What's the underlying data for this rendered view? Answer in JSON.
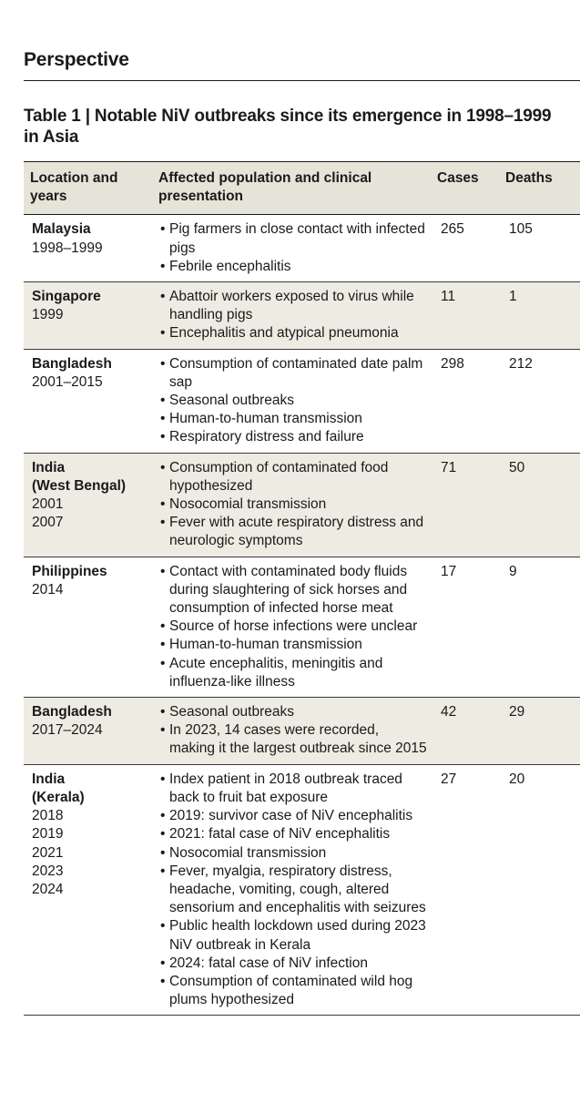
{
  "section_label": "Perspective",
  "table_title": "Table 1 | Notable NiV outbreaks since its emergence in 1998–1999 in Asia",
  "headers": {
    "location": "Location and years",
    "population": "Affected population and clinical presentation",
    "cases": "Cases",
    "deaths": "Deaths"
  },
  "rows": [
    {
      "location": "Malaysia",
      "years": [
        "1998–1999"
      ],
      "points": [
        "Pig farmers in close contact with infected pigs",
        "Febrile encephalitis"
      ],
      "cases": "265",
      "deaths": "105"
    },
    {
      "location": "Singapore",
      "years": [
        "1999"
      ],
      "points": [
        "Abattoir workers exposed to virus while handling pigs",
        "Encephalitis and atypical pneumonia"
      ],
      "cases": "11",
      "deaths": "1"
    },
    {
      "location": "Bangladesh",
      "years": [
        "2001–2015"
      ],
      "points": [
        "Consumption of contaminated date palm sap",
        "Seasonal outbreaks",
        "Human-to-human transmission",
        "Respiratory distress and failure"
      ],
      "cases": "298",
      "deaths": "212"
    },
    {
      "location": "India",
      "location2": "(West Bengal)",
      "years": [
        "2001",
        "2007"
      ],
      "points": [
        "Consumption of contaminated food hypothesized",
        "Nosocomial transmission",
        "Fever with acute respiratory distress and neurologic symptoms"
      ],
      "cases": "71",
      "deaths": "50"
    },
    {
      "location": "Philippines",
      "years": [
        "2014"
      ],
      "points": [
        "Contact with contaminated body fluids during slaughtering of sick horses and consumption of infected horse meat",
        "Source of horse infections were unclear",
        "Human-to-human transmission",
        "Acute encephalitis, meningitis and influenza-like illness"
      ],
      "cases": "17",
      "deaths": "9"
    },
    {
      "location": "Bangladesh",
      "years": [
        "2017–2024"
      ],
      "points": [
        "Seasonal outbreaks",
        "In 2023, 14 cases were recorded, making it the largest outbreak since 2015"
      ],
      "cases": "42",
      "deaths": "29"
    },
    {
      "location": "India",
      "location2": "(Kerala)",
      "years": [
        "2018",
        "2019",
        "2021",
        "2023",
        "2024"
      ],
      "points": [
        "Index patient in 2018 outbreak traced back to fruit bat exposure",
        "2019: survivor case of NiV encephalitis",
        "2021: fatal case of NiV encephalitis",
        "Nosocomial transmission",
        "Fever, myalgia, respiratory distress, headache, vomiting, cough, altered sensorium and encephalitis with seizures",
        "Public health lockdown used during 2023 NiV outbreak in Kerala",
        "2024: fatal case of NiV infection",
        "Consumption of contaminated wild hog plums hypothesized"
      ],
      "cases": "27",
      "deaths": "20"
    }
  ]
}
